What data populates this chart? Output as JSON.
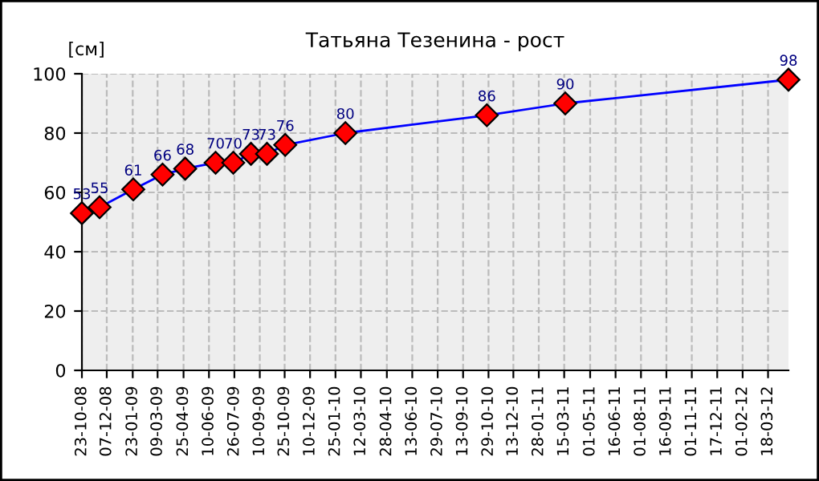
{
  "chart_data": {
    "type": "line",
    "title": "Татьяна Тезенина - рост",
    "ylabel": "[см]",
    "x": [
      "2008-10-23",
      "2008-11-24",
      "2009-01-24",
      "2009-03-18",
      "2009-04-28",
      "2009-06-22",
      "2009-07-24",
      "2009-08-25",
      "2009-09-23",
      "2009-10-26",
      "2010-02-12",
      "2010-10-26",
      "2011-03-17",
      "2012-04-24"
    ],
    "series": [
      {
        "color": "#0000ff",
        "values": [
          53,
          55,
          61,
          66,
          68,
          70,
          70,
          73,
          73,
          76,
          80,
          86,
          90,
          98
        ]
      }
    ],
    "marker": "diamond",
    "data_labels": true,
    "grid": true,
    "ylim": [
      0,
      100
    ],
    "yticks": [
      0,
      20,
      40,
      60,
      80,
      100
    ],
    "xlim": [
      "2008-10-23",
      "2012-04-24"
    ],
    "xticks": [
      {
        "value": "2008-10-23",
        "label": "23-10-08"
      },
      {
        "value": "2008-12-07",
        "label": "07-12-08"
      },
      {
        "value": "2009-01-23",
        "label": "23-01-09"
      },
      {
        "value": "2009-03-09",
        "label": "09-03-09"
      },
      {
        "value": "2009-04-25",
        "label": "25-04-09"
      },
      {
        "value": "2009-06-10",
        "label": "10-06-09"
      },
      {
        "value": "2009-07-26",
        "label": "26-07-09"
      },
      {
        "value": "2009-09-10",
        "label": "10-09-09"
      },
      {
        "value": "2009-10-25",
        "label": "25-10-09"
      },
      {
        "value": "2009-12-10",
        "label": "10-12-09"
      },
      {
        "value": "2010-01-25",
        "label": "25-01-10"
      },
      {
        "value": "2010-03-12",
        "label": "12-03-10"
      },
      {
        "value": "2010-04-28",
        "label": "28-04-10"
      },
      {
        "value": "2010-06-13",
        "label": "13-06-10"
      },
      {
        "value": "2010-07-29",
        "label": "29-07-10"
      },
      {
        "value": "2010-09-13",
        "label": "13-09-10"
      },
      {
        "value": "2010-10-29",
        "label": "29-10-10"
      },
      {
        "value": "2010-12-13",
        "label": "13-12-10"
      },
      {
        "value": "2011-01-28",
        "label": "28-01-11"
      },
      {
        "value": "2011-03-15",
        "label": "15-03-11"
      },
      {
        "value": "2011-05-01",
        "label": "01-05-11"
      },
      {
        "value": "2011-06-16",
        "label": "16-06-11"
      },
      {
        "value": "2011-08-01",
        "label": "01-08-11"
      },
      {
        "value": "2011-09-16",
        "label": "16-09-11"
      },
      {
        "value": "2011-11-01",
        "label": "01-11-11"
      },
      {
        "value": "2011-12-17",
        "label": "17-12-11"
      },
      {
        "value": "2012-02-01",
        "label": "01-02-12"
      },
      {
        "value": "2012-03-18",
        "label": "18-03-12"
      }
    ]
  }
}
